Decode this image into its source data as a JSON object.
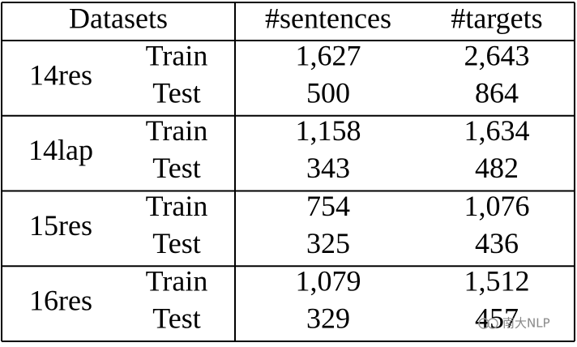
{
  "table": {
    "header": [
      "Datasets",
      "#sentences",
      "#targets"
    ],
    "groups": [
      {
        "name": "14res",
        "rows": [
          [
            "Train",
            "1,627",
            "2,643"
          ],
          [
            "Test",
            "500",
            "864"
          ]
        ]
      },
      {
        "name": "14lap",
        "rows": [
          [
            "Train",
            "1,158",
            "1,634"
          ],
          [
            "Test",
            "343",
            "482"
          ]
        ]
      },
      {
        "name": "15res",
        "rows": [
          [
            "Train",
            "754",
            "1,076"
          ],
          [
            "Test",
            "325",
            "436"
          ]
        ]
      },
      {
        "name": "16res",
        "rows": [
          [
            "Train",
            "1,079",
            "1,512"
          ],
          [
            "Test",
            "329",
            "457"
          ]
        ]
      }
    ]
  },
  "watermark": "南大NLP"
}
